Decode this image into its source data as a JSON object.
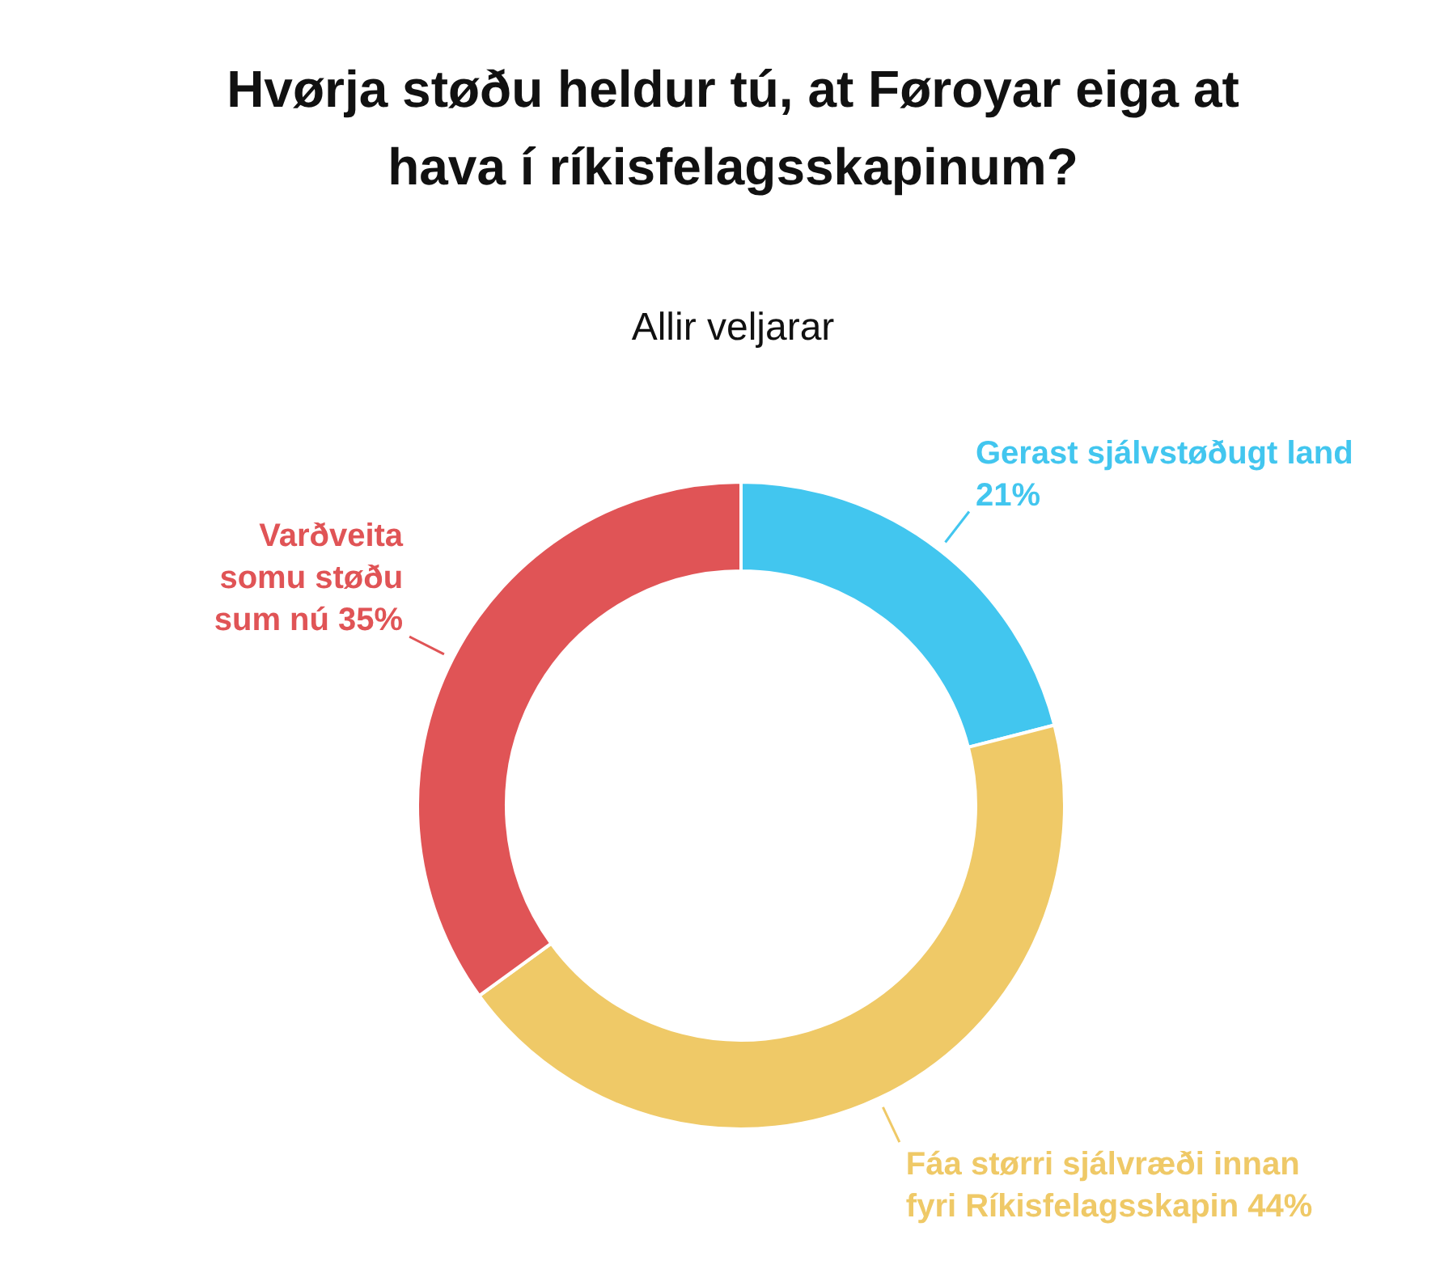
{
  "chart_data": {
    "type": "donut",
    "title": "Hvørja støðu heldur tú, at Føroyar eiga at hava í ríkisfelagsskapinum?",
    "subtitle": "Allir veljarar",
    "categories": [
      "Gerast sjálvstøðugt land",
      "Fáa størri sjálvræði innan fyri Ríkisfelagsskapin",
      "Varðveita somu støðu sum nú"
    ],
    "values": [
      21,
      44,
      35
    ],
    "value_labels": [
      "21%",
      "44%",
      "35%"
    ],
    "colors": [
      "#42c6ef",
      "#efc967",
      "#e05456"
    ],
    "legend": false
  }
}
